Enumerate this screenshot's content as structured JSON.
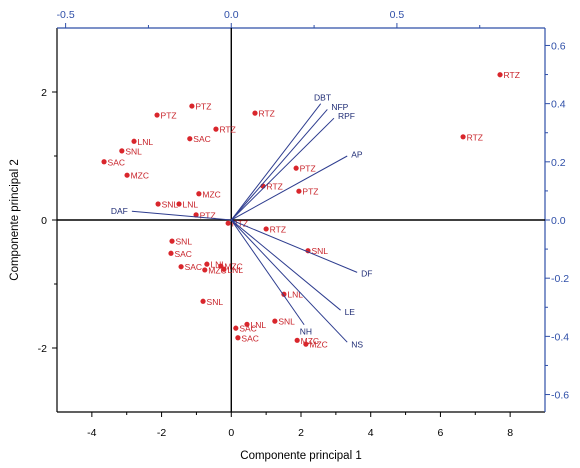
{
  "chart_data": {
    "type": "scatter",
    "xlabel": "Componente principal 1",
    "ylabel": "Componente principal 2",
    "xlim": [
      -5,
      9
    ],
    "ylim": [
      -3,
      3
    ],
    "x2lim": [
      -0.526,
      0.947
    ],
    "y2lim": [
      -0.66,
      0.66
    ],
    "grid": false,
    "x_ticks": [
      {
        "value": -4,
        "label": "-4"
      },
      {
        "value": -2,
        "label": "-2"
      },
      {
        "value": 0,
        "label": "0"
      },
      {
        "value": 2,
        "label": "2"
      },
      {
        "value": 4,
        "label": "4"
      },
      {
        "value": 6,
        "label": "6"
      },
      {
        "value": 8,
        "label": "8"
      }
    ],
    "y_ticks": [
      {
        "value": -2,
        "label": "-2"
      },
      {
        "value": 0,
        "label": "0"
      },
      {
        "value": 2,
        "label": "2"
      }
    ],
    "x2_ticks": [
      {
        "value": -0.5,
        "label": "-0.5"
      },
      {
        "value": 0,
        "label": "0.0"
      },
      {
        "value": 0.5,
        "label": "0.5"
      }
    ],
    "y2_ticks": [
      {
        "value": -0.6,
        "label": "-0.6"
      },
      {
        "value": -0.4,
        "label": "-0.4"
      },
      {
        "value": -0.2,
        "label": "-0.2"
      },
      {
        "value": 0,
        "label": "0.0"
      },
      {
        "value": 0.2,
        "label": "0.2"
      },
      {
        "value": 0.4,
        "label": "0.4"
      },
      {
        "value": 0.6,
        "label": "0.6"
      }
    ],
    "scores": [
      {
        "label": "RTZ",
        "x": 7.71,
        "y": 2.27
      },
      {
        "label": "RTZ",
        "x": 6.65,
        "y": 1.3
      },
      {
        "label": "RTZ",
        "x": 0.68,
        "y": 1.67
      },
      {
        "label": "PTZ",
        "x": -1.13,
        "y": 1.78
      },
      {
        "label": "PTZ",
        "x": -2.13,
        "y": 1.64
      },
      {
        "label": "RTZ",
        "x": -0.44,
        "y": 1.42
      },
      {
        "label": "SAC",
        "x": -1.19,
        "y": 1.27
      },
      {
        "label": "LNL",
        "x": -2.79,
        "y": 1.23
      },
      {
        "label": "SNL",
        "x": -3.14,
        "y": 1.08
      },
      {
        "label": "SAC",
        "x": -3.65,
        "y": 0.91
      },
      {
        "label": "MZC",
        "x": -2.99,
        "y": 0.7
      },
      {
        "label": "PTZ",
        "x": 1.86,
        "y": 0.81
      },
      {
        "label": "RTZ",
        "x": 0.91,
        "y": 0.53
      },
      {
        "label": "PTZ",
        "x": 1.94,
        "y": 0.45
      },
      {
        "label": "MZC",
        "x": -0.93,
        "y": 0.41
      },
      {
        "label": "SNL",
        "x": -2.1,
        "y": 0.25
      },
      {
        "label": "LNL",
        "x": -1.5,
        "y": 0.25
      },
      {
        "label": "PTZ",
        "x": -1.01,
        "y": 0.08
      },
      {
        "label": "RTZ",
        "x": -0.09,
        "y": -0.05
      },
      {
        "label": "RTZ",
        "x": 1.0,
        "y": -0.14
      },
      {
        "label": "SNL",
        "x": -1.7,
        "y": -0.33
      },
      {
        "label": "SAC",
        "x": -1.73,
        "y": -0.52
      },
      {
        "label": "SNL",
        "x": 2.2,
        "y": -0.48
      },
      {
        "label": "SAC",
        "x": -1.44,
        "y": -0.73
      },
      {
        "label": "LNL",
        "x": -0.7,
        "y": -0.69
      },
      {
        "label": "MZC",
        "x": -0.76,
        "y": -0.78
      },
      {
        "label": "MZC",
        "x": -0.3,
        "y": -0.72
      },
      {
        "label": "LNL",
        "x": -0.21,
        "y": -0.77
      },
      {
        "label": "LNL",
        "x": 1.51,
        "y": -1.16
      },
      {
        "label": "SNL",
        "x": -0.81,
        "y": -1.27
      },
      {
        "label": "SNL",
        "x": 1.25,
        "y": -1.58
      },
      {
        "label": "LNL",
        "x": 0.45,
        "y": -1.63
      },
      {
        "label": "SAC",
        "x": 0.13,
        "y": -1.69
      },
      {
        "label": "SAC",
        "x": 0.19,
        "y": -1.84
      },
      {
        "label": "MZC",
        "x": 1.89,
        "y": -1.88
      },
      {
        "label": "MZC",
        "x": 2.14,
        "y": -1.94
      }
    ],
    "loadings": [
      {
        "label": "DAF",
        "x": -0.3,
        "y": 0.03
      },
      {
        "label": "DBT",
        "x": 0.27,
        "y": 0.4
      },
      {
        "label": "NFP",
        "x": 0.29,
        "y": 0.38
      },
      {
        "label": "RPF",
        "x": 0.31,
        "y": 0.35
      },
      {
        "label": "AP",
        "x": 0.35,
        "y": 0.22
      },
      {
        "label": "DF",
        "x": 0.38,
        "y": -0.18
      },
      {
        "label": "LE",
        "x": 0.33,
        "y": -0.31
      },
      {
        "label": "NS",
        "x": 0.35,
        "y": -0.42
      },
      {
        "label": "NH",
        "x": 0.22,
        "y": -0.36
      }
    ]
  },
  "colors": {
    "points": "#d9262c",
    "point_labels": "#c8232a",
    "vectors": "#2e3d8f",
    "vector_labels": "#1f2c75",
    "axes": "#000000",
    "secondary_axes": "#2f4fa8"
  }
}
